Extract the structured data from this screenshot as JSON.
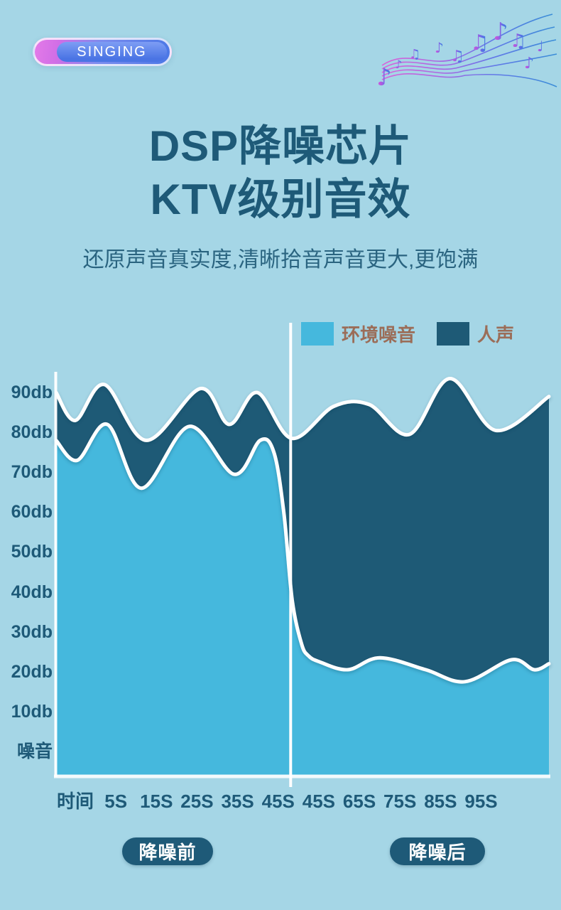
{
  "badge": {
    "label": "SINGING"
  },
  "title": {
    "line1": "DSP降噪芯片",
    "line2": "KTV级别音效"
  },
  "subtitle": "还原声音真实度,清晰拾音声音更大,更饱满",
  "footer": {
    "before_label": "降噪前",
    "after_label": "降噪后"
  },
  "colors": {
    "background": "#a5d6e6",
    "noise_fill": "#45b8dd",
    "voice_fill": "#1e5a76",
    "heading_text": "#1e5a78",
    "legend_text": "#9b6d58",
    "axis_line": "#ffffff",
    "badge_blue": "#4a77e6",
    "badge_magenta": "#d96ee6",
    "pill_bg": "#1e5a78",
    "notes_gradient": [
      "#e256d8",
      "#a95ce2",
      "#5a6fe8",
      "#2f86d6"
    ]
  },
  "chart_data": {
    "type": "area",
    "title": "",
    "xlabel": "时间",
    "ylabel": "噪音",
    "unit": "db",
    "ylim": [
      0,
      95
    ],
    "grid": false,
    "legend_position": "top-right",
    "y_ticks": [
      "90db",
      "80db",
      "70db",
      "60db",
      "50db",
      "40db",
      "30db",
      "20db",
      "10db",
      "噪音"
    ],
    "x_ticks": [
      "时间",
      "5S",
      "15S",
      "25S",
      "35S",
      "45S",
      "45S",
      "65S",
      "75S",
      "85S",
      "95S"
    ],
    "divider_x_fraction": 0.476,
    "sections": {
      "left_of_divider": "降噪前",
      "right_of_divider": "降噪后"
    },
    "legend": [
      {
        "label": "环境噪音",
        "color": "#45b8dd"
      },
      {
        "label": "人声",
        "color": "#1e5a76"
      }
    ],
    "series": [
      {
        "name": "人声",
        "color": "#1e5a76",
        "stroke": "#ffffff",
        "points_t_db": [
          [
            0.0,
            90
          ],
          [
            0.039,
            83
          ],
          [
            0.098,
            92
          ],
          [
            0.183,
            78
          ],
          [
            0.293,
            91
          ],
          [
            0.351,
            82
          ],
          [
            0.408,
            90
          ],
          [
            0.478,
            78.5
          ],
          [
            0.563,
            86.5
          ],
          [
            0.635,
            87
          ],
          [
            0.717,
            79.5
          ],
          [
            0.799,
            93.5
          ],
          [
            0.892,
            80.5
          ],
          [
            1.0,
            89
          ]
        ]
      },
      {
        "name": "环境噪音",
        "color": "#45b8dd",
        "stroke": "#ffffff",
        "points_t_db": [
          [
            0.0,
            78
          ],
          [
            0.043,
            73
          ],
          [
            0.104,
            82
          ],
          [
            0.173,
            66
          ],
          [
            0.27,
            81.5
          ],
          [
            0.361,
            69.5
          ],
          [
            0.414,
            78
          ],
          [
            0.442,
            75
          ],
          [
            0.462,
            60
          ],
          [
            0.479,
            38
          ],
          [
            0.498,
            27
          ],
          [
            0.512,
            24
          ],
          [
            0.534,
            22.5
          ],
          [
            0.592,
            20.5
          ],
          [
            0.657,
            23.5
          ],
          [
            0.75,
            20.5
          ],
          [
            0.83,
            17.5
          ],
          [
            0.924,
            23
          ],
          [
            0.97,
            20.5
          ],
          [
            1.0,
            22
          ]
        ]
      }
    ]
  }
}
